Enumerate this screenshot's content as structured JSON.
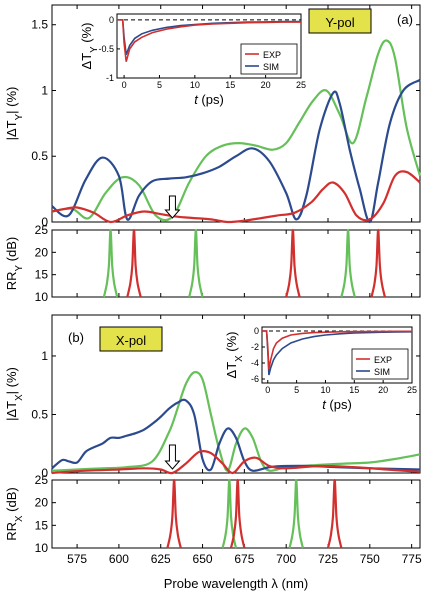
{
  "chart_data": [
    {
      "type": "line",
      "panel_label": "(a)",
      "badge": "Y-pol",
      "ylabel": "|ΔT_Y| (%)",
      "xlim": [
        560,
        780
      ],
      "ylim": [
        0,
        1.65
      ],
      "yticks": [
        "0",
        "0.5",
        "1",
        "1.5"
      ],
      "arrow_x": 632,
      "series": [
        {
          "color_key": "green",
          "x": [
            560,
            572,
            582,
            592,
            602,
            612,
            622,
            632,
            642,
            652,
            662,
            672,
            682,
            692,
            700,
            708,
            716,
            724,
            732,
            740,
            748,
            755,
            760,
            765,
            772,
            780
          ],
          "y": [
            0.08,
            0.1,
            0.03,
            0.22,
            0.34,
            0.28,
            0.05,
            0.04,
            0.3,
            0.5,
            0.58,
            0.6,
            0.58,
            0.55,
            0.6,
            0.76,
            0.92,
            1.0,
            0.82,
            0.6,
            0.95,
            1.28,
            1.38,
            1.25,
            0.72,
            0.35
          ]
        },
        {
          "color_key": "blue",
          "x": [
            560,
            570,
            580,
            590,
            600,
            605,
            612,
            620,
            630,
            640,
            650,
            660,
            670,
            680,
            690,
            700,
            706,
            712,
            720,
            728,
            732,
            738,
            744,
            750,
            755,
            762,
            770,
            780
          ],
          "y": [
            0.12,
            0.05,
            0.32,
            0.49,
            0.35,
            0.02,
            0.2,
            0.31,
            0.33,
            0.34,
            0.37,
            0.42,
            0.5,
            0.56,
            0.46,
            0.22,
            0.02,
            0.2,
            0.7,
            0.98,
            0.9,
            0.55,
            0.25,
            0.0,
            0.3,
            0.75,
            1.0,
            1.08
          ]
        },
        {
          "color_key": "red",
          "x": [
            560,
            568,
            575,
            585,
            595,
            605,
            615,
            625,
            635,
            645,
            655,
            665,
            675,
            685,
            695,
            705,
            715,
            722,
            728,
            735,
            742,
            750,
            758,
            765,
            772,
            780
          ],
          "y": [
            0.08,
            0.1,
            0.11,
            0.07,
            0.0,
            0.05,
            0.08,
            0.06,
            0.04,
            0.03,
            0.02,
            0.0,
            0.01,
            0.03,
            0.05,
            0.07,
            0.15,
            0.25,
            0.3,
            0.22,
            0.05,
            0.02,
            0.14,
            0.35,
            0.38,
            0.3
          ]
        }
      ],
      "inset": {
        "xlabel": "t (ps)",
        "ylabel": "ΔT_Y (%)",
        "xlim": [
          -1,
          25
        ],
        "ylim": [
          -1,
          0.1
        ],
        "xticks": [
          "0",
          "5",
          "10",
          "15",
          "20",
          "25"
        ],
        "yticks": [
          "0",
          "-0.5",
          "-1"
        ],
        "legend": [
          "EXP",
          "SIM"
        ],
        "legend_position": "bottom-right",
        "exp": {
          "x": [
            -1,
            -0.2,
            0,
            0.3,
            0.8,
            1.5,
            2.5,
            4,
            6,
            8,
            10,
            12.5,
            15,
            17.5,
            20,
            22.5,
            25
          ],
          "y": [
            0,
            0,
            -0.4,
            -0.72,
            -0.5,
            -0.38,
            -0.3,
            -0.22,
            -0.16,
            -0.12,
            -0.09,
            -0.07,
            -0.06,
            -0.05,
            -0.045,
            -0.04,
            -0.04
          ]
        },
        "sim": {
          "x": [
            -1,
            -0.2,
            0,
            0.3,
            0.8,
            1.5,
            2.5,
            4,
            6,
            8,
            10,
            12.5,
            15,
            17.5,
            20,
            22.5,
            25
          ],
          "y": [
            0,
            0,
            -0.3,
            -0.6,
            -0.44,
            -0.32,
            -0.24,
            -0.18,
            -0.13,
            -0.1,
            -0.08,
            -0.06,
            -0.05,
            -0.04,
            -0.035,
            -0.03,
            -0.03
          ]
        }
      }
    },
    {
      "type": "line",
      "ylabel": "RR_Y (dB)",
      "xlim": [
        560,
        780
      ],
      "ylim": [
        10,
        25
      ],
      "yticks": [
        "10",
        "15",
        "20",
        "25"
      ],
      "peaks": [
        {
          "center": 595,
          "color_key": "green"
        },
        {
          "center": 609,
          "color_key": "red"
        },
        {
          "center": 646,
          "color_key": "green"
        },
        {
          "center": 704,
          "color_key": "red"
        },
        {
          "center": 737,
          "color_key": "green"
        },
        {
          "center": 755,
          "color_key": "red"
        }
      ]
    },
    {
      "type": "line",
      "panel_label": "(b)",
      "badge": "X-pol",
      "ylabel": "|ΔT_X| (%)",
      "xlim": [
        560,
        780
      ],
      "ylim": [
        0,
        1.35
      ],
      "yticks": [
        "0",
        "0.5",
        "1"
      ],
      "arrow_x": 632,
      "series": [
        {
          "color_key": "green",
          "x": [
            560,
            575,
            590,
            605,
            620,
            630,
            635,
            640,
            645,
            650,
            655,
            660,
            665,
            670,
            675,
            680,
            685,
            690,
            700,
            710,
            720,
            735,
            750,
            765,
            780
          ],
          "y": [
            0.02,
            0.03,
            0.04,
            0.05,
            0.1,
            0.35,
            0.55,
            0.76,
            0.86,
            0.8,
            0.5,
            0.2,
            0.02,
            0.25,
            0.38,
            0.3,
            0.1,
            0.02,
            0.05,
            0.06,
            0.07,
            0.08,
            0.09,
            0.12,
            0.16
          ]
        },
        {
          "color_key": "blue",
          "x": [
            560,
            566,
            570,
            575,
            580,
            585,
            590,
            595,
            600,
            605,
            610,
            615,
            620,
            625,
            630,
            635,
            640,
            645,
            650,
            655,
            660,
            665,
            670,
            675,
            680,
            690,
            700,
            715,
            730,
            750,
            780
          ],
          "y": [
            0.04,
            0.11,
            0.1,
            0.09,
            0.18,
            0.22,
            0.25,
            0.3,
            0.3,
            0.32,
            0.34,
            0.37,
            0.42,
            0.48,
            0.55,
            0.6,
            0.62,
            0.5,
            0.12,
            0.03,
            0.25,
            0.38,
            0.3,
            0.1,
            0.02,
            0.05,
            0.06,
            0.06,
            0.05,
            0.04,
            0.03
          ]
        },
        {
          "color_key": "red",
          "x": [
            560,
            580,
            600,
            615,
            625,
            632,
            640,
            648,
            655,
            662,
            668,
            675,
            682,
            690,
            700,
            720,
            740,
            760,
            780
          ],
          "y": [
            0.0,
            0.02,
            0.03,
            0.04,
            0.03,
            0.0,
            0.08,
            0.18,
            0.17,
            0.08,
            0.0,
            0.1,
            0.13,
            0.06,
            0.04,
            0.06,
            0.05,
            0.03,
            0.01
          ]
        }
      ],
      "inset": {
        "xlabel": "t (ps)",
        "ylabel": "ΔT_X (%)",
        "xlim": [
          -1,
          25
        ],
        "ylim": [
          -6.5,
          0.5
        ],
        "xticks": [
          "0",
          "5",
          "10",
          "15",
          "20",
          "25"
        ],
        "yticks": [
          "0",
          "-2",
          "-4",
          "-6"
        ],
        "legend": [
          "EXP",
          "SIM"
        ],
        "legend_position": "bottom-right",
        "exp": {
          "x": [
            -1,
            -0.2,
            0,
            0.2,
            0.5,
            1,
            1.5,
            2.5,
            4,
            6,
            8,
            10,
            12.5,
            15,
            17.5,
            20,
            22.5,
            25
          ],
          "y": [
            0,
            0,
            -2,
            -4.8,
            -3.6,
            -2.2,
            -1.5,
            -0.9,
            -0.5,
            -0.3,
            -0.2,
            -0.15,
            -0.1,
            -0.08,
            -0.06,
            -0.05,
            -0.04,
            -0.04
          ]
        },
        "sim": {
          "x": [
            -1,
            -0.2,
            0,
            0.2,
            0.5,
            1,
            1.5,
            2.5,
            4,
            6,
            8,
            10,
            12.5,
            15,
            17.5,
            20,
            22.5,
            25
          ],
          "y": [
            0,
            0,
            -2.5,
            -5.5,
            -4.6,
            -3.6,
            -3.0,
            -2.2,
            -1.5,
            -1.0,
            -0.7,
            -0.5,
            -0.35,
            -0.25,
            -0.2,
            -0.15,
            -0.12,
            -0.1
          ]
        }
      }
    },
    {
      "type": "line",
      "ylabel": "RR_X (dB)",
      "xlabel": "Probe wavelength λ (nm)",
      "xlim": [
        560,
        780
      ],
      "ylim": [
        10,
        25
      ],
      "yticks": [
        "10",
        "15",
        "20",
        "25"
      ],
      "xticks": [
        "575",
        "600",
        "625",
        "650",
        "675",
        "700",
        "725",
        "750",
        "775"
      ],
      "peaks": [
        {
          "center": 633,
          "color_key": "red"
        },
        {
          "center": 666,
          "color_key": "green"
        },
        {
          "center": 671,
          "color_key": "red"
        },
        {
          "center": 706,
          "color_key": "green"
        },
        {
          "center": 729,
          "color_key": "red"
        }
      ]
    }
  ],
  "colors": {
    "green": "#66c05a",
    "blue": "#2c4a8e",
    "red": "#d1302e",
    "badge": "#e4e24a",
    "arrow_fill": "#ffffff"
  }
}
